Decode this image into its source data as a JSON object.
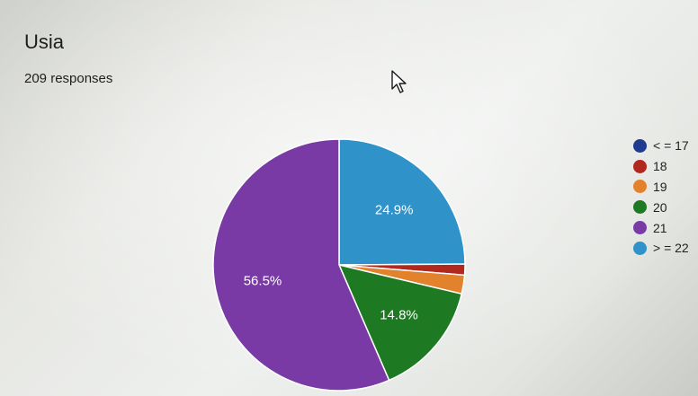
{
  "form": {
    "question_title": "Usia",
    "response_count": "209 responses"
  },
  "chart_data": {
    "type": "pie",
    "title": "Usia",
    "subtitle": "209 responses",
    "legend_position": "right",
    "slices": [
      {
        "label": "< = 17",
        "value": 0.0,
        "percent_label": "",
        "color": "#1f3c8f"
      },
      {
        "label": "18",
        "value": 1.4,
        "percent_label": "",
        "color": "#b0281e"
      },
      {
        "label": "19",
        "value": 2.4,
        "percent_label": "",
        "color": "#e2822c"
      },
      {
        "label": "20",
        "value": 14.8,
        "percent_label": "14.8%",
        "color": "#1d7a22"
      },
      {
        "label": "21",
        "value": 56.5,
        "percent_label": "56.5%",
        "color": "#7a3aa6"
      },
      {
        "label": "> = 22",
        "value": 24.9,
        "percent_label": "24.9%",
        "color": "#2f92c9"
      }
    ]
  },
  "icons": {
    "cursor": "mouse-pointer-icon"
  }
}
